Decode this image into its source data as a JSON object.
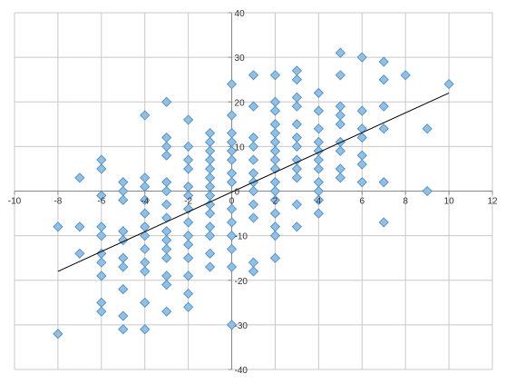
{
  "chart_data": {
    "type": "scatter",
    "title": "",
    "xlabel": "",
    "ylabel": "",
    "xlim": [
      -10,
      12
    ],
    "ylim": [
      -40,
      40
    ],
    "x_ticks": [
      -10,
      -8,
      -6,
      -4,
      -2,
      0,
      2,
      4,
      6,
      8,
      10,
      12
    ],
    "y_ticks": [
      -40,
      -30,
      -20,
      -10,
      0,
      10,
      20,
      30,
      40
    ],
    "x_tick_labels": [
      "-10",
      "-8",
      "-6",
      "-4",
      "-2",
      "0",
      "2",
      "4",
      "6",
      "8",
      "10",
      "12"
    ],
    "y_tick_labels": [
      "-40",
      "-30",
      "-20",
      "-10",
      "0",
      "10",
      "20",
      "30",
      "40"
    ],
    "grid": true,
    "legend": "none",
    "marker": "diamond",
    "colors": {
      "marker_fill": "#8fc1e6",
      "marker_stroke": "#4a86c0",
      "trendline": "#000000",
      "grid": "#c8c8c8",
      "axis": "#888888"
    },
    "trendline": {
      "type": "linear",
      "x": [
        -8,
        10
      ],
      "y": [
        -18,
        22
      ]
    },
    "points": [
      {
        "x": -8,
        "y": -8
      },
      {
        "x": -8,
        "y": -32
      },
      {
        "x": -7,
        "y": 3
      },
      {
        "x": -7,
        "y": -8
      },
      {
        "x": -7,
        "y": -14
      },
      {
        "x": -6,
        "y": 7
      },
      {
        "x": -6,
        "y": 5
      },
      {
        "x": -6,
        "y": -1
      },
      {
        "x": -6,
        "y": -8
      },
      {
        "x": -6,
        "y": -10
      },
      {
        "x": -6,
        "y": -14
      },
      {
        "x": -6,
        "y": -16
      },
      {
        "x": -6,
        "y": -19
      },
      {
        "x": -6,
        "y": -25
      },
      {
        "x": -6,
        "y": -27
      },
      {
        "x": -5,
        "y": 2
      },
      {
        "x": -5,
        "y": 0
      },
      {
        "x": -5,
        "y": -2
      },
      {
        "x": -5,
        "y": -9
      },
      {
        "x": -5,
        "y": -11
      },
      {
        "x": -5,
        "y": -15
      },
      {
        "x": -5,
        "y": -17
      },
      {
        "x": -5,
        "y": -22
      },
      {
        "x": -5,
        "y": -28
      },
      {
        "x": -5,
        "y": -31
      },
      {
        "x": -4,
        "y": 17
      },
      {
        "x": -4,
        "y": 3
      },
      {
        "x": -4,
        "y": 1
      },
      {
        "x": -4,
        "y": -2
      },
      {
        "x": -4,
        "y": -5
      },
      {
        "x": -4,
        "y": -8
      },
      {
        "x": -4,
        "y": -10
      },
      {
        "x": -4,
        "y": -13
      },
      {
        "x": -4,
        "y": -16
      },
      {
        "x": -4,
        "y": -18
      },
      {
        "x": -4,
        "y": -25
      },
      {
        "x": -4,
        "y": -31
      },
      {
        "x": -3,
        "y": 20
      },
      {
        "x": -3,
        "y": 12
      },
      {
        "x": -3,
        "y": 10
      },
      {
        "x": -3,
        "y": 8
      },
      {
        "x": -3,
        "y": 2
      },
      {
        "x": -3,
        "y": 0
      },
      {
        "x": -3,
        "y": -3
      },
      {
        "x": -3,
        "y": -6
      },
      {
        "x": -3,
        "y": -9
      },
      {
        "x": -3,
        "y": -11
      },
      {
        "x": -3,
        "y": -13
      },
      {
        "x": -3,
        "y": -15
      },
      {
        "x": -3,
        "y": -19
      },
      {
        "x": -3,
        "y": -21
      },
      {
        "x": -3,
        "y": -27
      },
      {
        "x": -2,
        "y": 16
      },
      {
        "x": -2,
        "y": 10
      },
      {
        "x": -2,
        "y": 7
      },
      {
        "x": -2,
        "y": 5
      },
      {
        "x": -2,
        "y": 1
      },
      {
        "x": -2,
        "y": -1
      },
      {
        "x": -2,
        "y": -4
      },
      {
        "x": -2,
        "y": -7
      },
      {
        "x": -2,
        "y": -10
      },
      {
        "x": -2,
        "y": -12
      },
      {
        "x": -2,
        "y": -15
      },
      {
        "x": -2,
        "y": -19
      },
      {
        "x": -2,
        "y": -23
      },
      {
        "x": -2,
        "y": -26
      },
      {
        "x": -1,
        "y": 13
      },
      {
        "x": -1,
        "y": 11
      },
      {
        "x": -1,
        "y": 9
      },
      {
        "x": -1,
        "y": 7
      },
      {
        "x": -1,
        "y": 5
      },
      {
        "x": -1,
        "y": 3
      },
      {
        "x": -1,
        "y": 1
      },
      {
        "x": -1,
        "y": -1
      },
      {
        "x": -1,
        "y": -3
      },
      {
        "x": -1,
        "y": -5
      },
      {
        "x": -1,
        "y": -8
      },
      {
        "x": -1,
        "y": -10
      },
      {
        "x": -1,
        "y": -14
      },
      {
        "x": -1,
        "y": -17
      },
      {
        "x": 0,
        "y": 24
      },
      {
        "x": 0,
        "y": 17
      },
      {
        "x": 0,
        "y": 13
      },
      {
        "x": 0,
        "y": 11
      },
      {
        "x": 0,
        "y": 9
      },
      {
        "x": 0,
        "y": 7
      },
      {
        "x": 0,
        "y": 4
      },
      {
        "x": 0,
        "y": 2
      },
      {
        "x": 0,
        "y": -4
      },
      {
        "x": 0,
        "y": -7
      },
      {
        "x": 0,
        "y": -10
      },
      {
        "x": 0,
        "y": -13
      },
      {
        "x": 0,
        "y": -17
      },
      {
        "x": 0,
        "y": -30
      },
      {
        "x": 1,
        "y": 26
      },
      {
        "x": 1,
        "y": 19
      },
      {
        "x": 1,
        "y": 12
      },
      {
        "x": 1,
        "y": 10
      },
      {
        "x": 1,
        "y": 7
      },
      {
        "x": 1,
        "y": 4
      },
      {
        "x": 1,
        "y": 2
      },
      {
        "x": 1,
        "y": 0
      },
      {
        "x": 1,
        "y": -3
      },
      {
        "x": 1,
        "y": -6
      },
      {
        "x": 1,
        "y": -16
      },
      {
        "x": 1,
        "y": -18
      },
      {
        "x": 2,
        "y": 26
      },
      {
        "x": 2,
        "y": 20
      },
      {
        "x": 2,
        "y": 18
      },
      {
        "x": 2,
        "y": 15
      },
      {
        "x": 2,
        "y": 13
      },
      {
        "x": 2,
        "y": 11
      },
      {
        "x": 2,
        "y": 9
      },
      {
        "x": 2,
        "y": 7
      },
      {
        "x": 2,
        "y": 5
      },
      {
        "x": 2,
        "y": 2
      },
      {
        "x": 2,
        "y": 0
      },
      {
        "x": 2,
        "y": -2
      },
      {
        "x": 2,
        "y": -5
      },
      {
        "x": 2,
        "y": -8
      },
      {
        "x": 2,
        "y": -10
      },
      {
        "x": 2,
        "y": -15
      },
      {
        "x": 3,
        "y": 27
      },
      {
        "x": 3,
        "y": 25
      },
      {
        "x": 3,
        "y": 21
      },
      {
        "x": 3,
        "y": 19
      },
      {
        "x": 3,
        "y": 15
      },
      {
        "x": 3,
        "y": 12
      },
      {
        "x": 3,
        "y": 10
      },
      {
        "x": 3,
        "y": 7
      },
      {
        "x": 3,
        "y": 5
      },
      {
        "x": 3,
        "y": 3
      },
      {
        "x": 3,
        "y": -3
      },
      {
        "x": 3,
        "y": -8
      },
      {
        "x": 4,
        "y": 22
      },
      {
        "x": 4,
        "y": 18
      },
      {
        "x": 4,
        "y": 14
      },
      {
        "x": 4,
        "y": 11
      },
      {
        "x": 4,
        "y": 9
      },
      {
        "x": 4,
        "y": 7
      },
      {
        "x": 4,
        "y": 5
      },
      {
        "x": 4,
        "y": 2
      },
      {
        "x": 4,
        "y": 0
      },
      {
        "x": 4,
        "y": -2
      },
      {
        "x": 4,
        "y": -5
      },
      {
        "x": 5,
        "y": 31
      },
      {
        "x": 5,
        "y": 26
      },
      {
        "x": 5,
        "y": 19
      },
      {
        "x": 5,
        "y": 17
      },
      {
        "x": 5,
        "y": 15
      },
      {
        "x": 5,
        "y": 11
      },
      {
        "x": 5,
        "y": 9
      },
      {
        "x": 5,
        "y": 5
      },
      {
        "x": 5,
        "y": 3
      },
      {
        "x": 6,
        "y": 30
      },
      {
        "x": 6,
        "y": 18
      },
      {
        "x": 6,
        "y": 14
      },
      {
        "x": 6,
        "y": 12
      },
      {
        "x": 6,
        "y": 8
      },
      {
        "x": 6,
        "y": 6
      },
      {
        "x": 6,
        "y": 2
      },
      {
        "x": 7,
        "y": 29
      },
      {
        "x": 7,
        "y": 25
      },
      {
        "x": 7,
        "y": 19
      },
      {
        "x": 7,
        "y": 14
      },
      {
        "x": 7,
        "y": 2
      },
      {
        "x": 7,
        "y": -7
      },
      {
        "x": 8,
        "y": 26
      },
      {
        "x": 9,
        "y": 14
      },
      {
        "x": 9,
        "y": 0
      },
      {
        "x": 10,
        "y": 24
      }
    ]
  }
}
